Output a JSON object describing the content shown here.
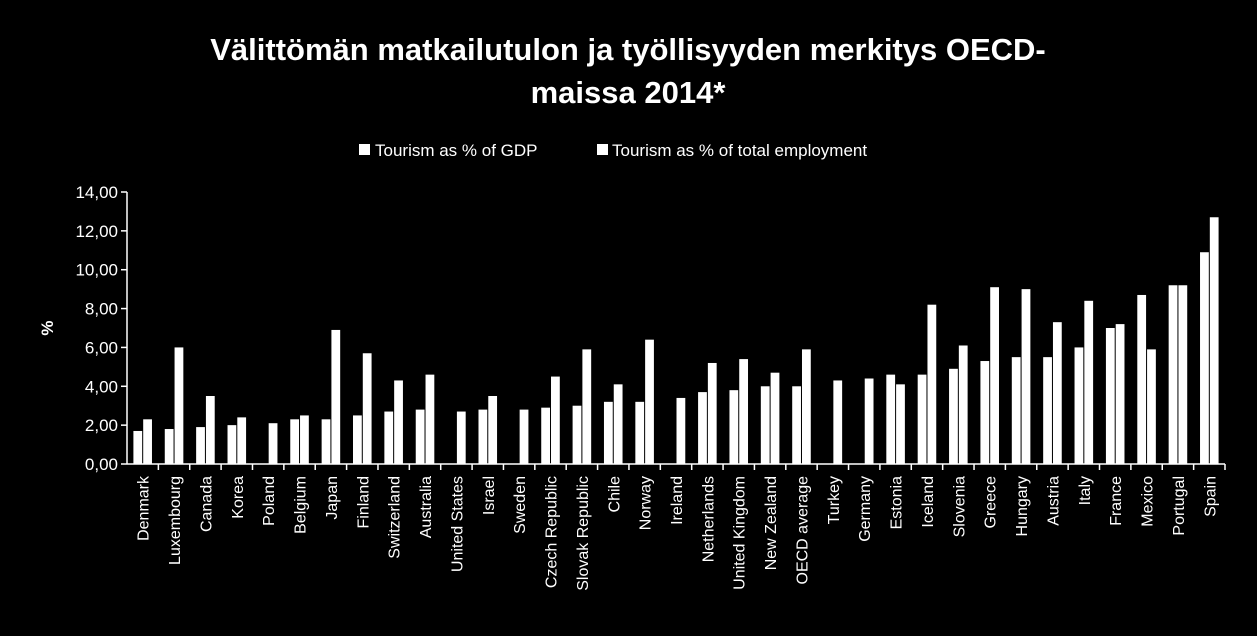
{
  "chart_data": {
    "type": "bar",
    "title_line1": "Välittömän matkailutulon ja työllisyyden merkitys OECD-",
    "title_line2": "maissa 2014*",
    "ylabel": "%",
    "ylim": [
      0,
      14
    ],
    "yticks": [
      "0,00",
      "2,00",
      "4,00",
      "6,00",
      "8,00",
      "10,00",
      "12,00",
      "14,00"
    ],
    "grid": false,
    "legend_position": "top",
    "bar_color": "#ffffff",
    "categories": [
      "Denmark",
      "Luxembourg",
      "Canada",
      "Korea",
      "Poland",
      "Belgium",
      "Japan",
      "Finland",
      "Switzerland",
      "Australia",
      "United States",
      "Israel",
      "Sweden",
      "Czech Republic",
      "Slovak Republic",
      "Chile",
      "Norway",
      "Ireland",
      "Netherlands",
      "United Kingdom",
      "New Zealand",
      "OECD average",
      "Turkey",
      "Germany",
      "Estonia",
      "Iceland",
      "Slovenia",
      "Greece",
      "Hungary",
      "Austria",
      "Italy",
      "France",
      "Mexico",
      "Portugal",
      "Spain"
    ],
    "series": [
      {
        "name": "Tourism as % of GDP",
        "values": [
          1.7,
          1.8,
          1.9,
          2.0,
          null,
          2.3,
          2.3,
          2.5,
          2.7,
          2.8,
          null,
          2.8,
          null,
          2.9,
          3.0,
          3.2,
          3.2,
          null,
          3.7,
          3.8,
          4.0,
          4.0,
          null,
          null,
          4.6,
          4.6,
          4.9,
          5.3,
          5.5,
          5.5,
          6.0,
          7.0,
          8.7,
          9.2,
          10.9
        ]
      },
      {
        "name": "Tourism as % of total employment",
        "values": [
          2.3,
          6.0,
          3.5,
          2.4,
          2.1,
          2.5,
          6.9,
          5.7,
          4.3,
          4.6,
          2.7,
          3.5,
          2.8,
          4.5,
          5.9,
          4.1,
          6.4,
          3.4,
          5.2,
          5.4,
          4.7,
          5.9,
          4.3,
          4.4,
          4.1,
          8.2,
          6.1,
          9.1,
          9.0,
          7.3,
          8.4,
          7.2,
          5.9,
          9.2,
          12.7
        ]
      }
    ]
  }
}
